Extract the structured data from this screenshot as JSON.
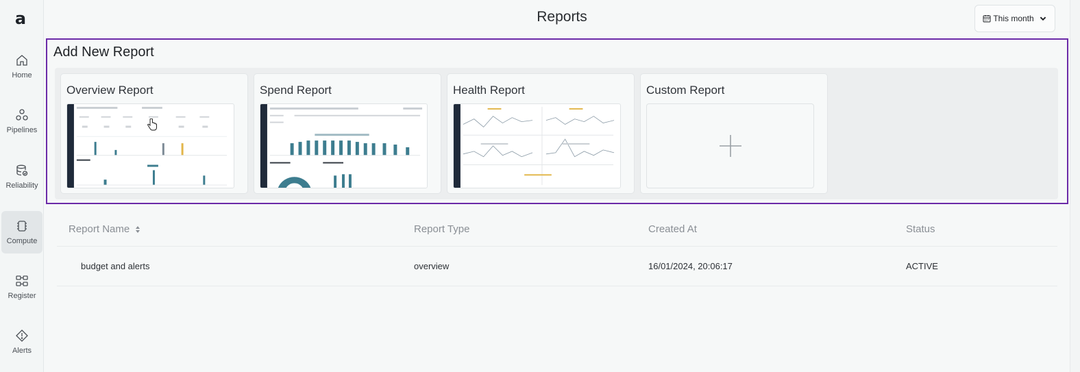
{
  "sidebar": {
    "logo": "a",
    "items": [
      {
        "label": "Home",
        "icon": "home-icon"
      },
      {
        "label": "Pipelines",
        "icon": "pipelines-icon"
      },
      {
        "label": "Reliability",
        "icon": "reliability-icon"
      },
      {
        "label": "Compute",
        "icon": "compute-icon",
        "active": true
      },
      {
        "label": "Register",
        "icon": "register-icon"
      },
      {
        "label": "Alerts",
        "icon": "alerts-icon"
      }
    ]
  },
  "header": {
    "title": "Reports",
    "date_filter": "This month"
  },
  "add_report": {
    "title": "Add New Report",
    "cards": [
      {
        "title": "Overview Report"
      },
      {
        "title": "Spend Report"
      },
      {
        "title": "Health Report"
      },
      {
        "title": "Custom Report"
      }
    ]
  },
  "table": {
    "columns": [
      "Report Name",
      "Report Type",
      "Created At",
      "Status"
    ],
    "rows": [
      {
        "name": "budget and alerts",
        "type": "overview",
        "created_at": "16/01/2024, 20:06:17",
        "status": "ACTIVE"
      }
    ]
  },
  "colors": {
    "accent_border": "#6b2aa8",
    "link": "#2a4a86",
    "bar_teal": "#3d7d8f",
    "bar_yellow": "#e2b64a"
  }
}
